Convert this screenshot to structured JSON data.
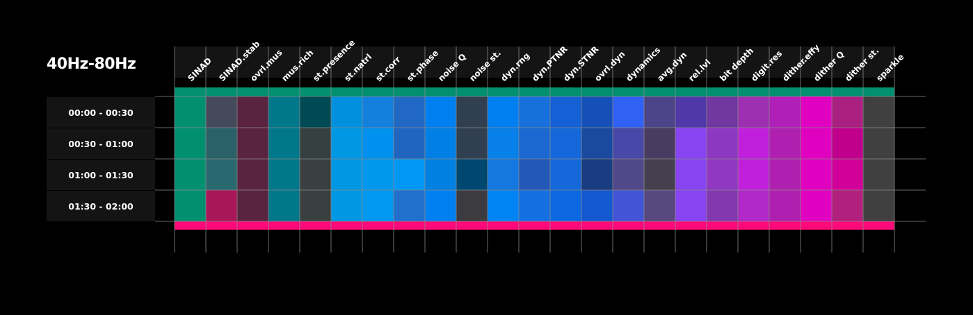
{
  "chart_data": {
    "type": "heatmap",
    "title": "40Hz-80Hz",
    "columns": [
      "SINAD",
      "SINAD.stab",
      "ovrl.mus",
      "mus.rich",
      "st.presence",
      "st.natrl",
      "st.corr",
      "st.phase",
      "noise Q",
      "noise st.",
      "dyn.rng",
      "dyn.PTNR",
      "dyn.STNR",
      "ovrl.dyn",
      "dynamics",
      "avg.dyn",
      "rel.lvl",
      "bit depth",
      "digit.res",
      "dither.effy",
      "dither Q",
      "dither st.",
      "sparkle"
    ],
    "rows": [
      "00:00 - 00:30",
      "00:30 - 01:00",
      "01:00 - 01:30",
      "01:30 - 02:00"
    ],
    "cells": [
      [
        "#009070",
        "#444a5c",
        "#5a2440",
        "#00788a",
        "#004a55",
        "#0090dd",
        "#1480dd",
        "#2068c4",
        "#0080f0",
        "#304050",
        "#0080f0",
        "#1870dd",
        "#1460d4",
        "#1450b8",
        "#3060f4",
        "#4c4488",
        "#5038a8",
        "#7038a0",
        "#9c30b0",
        "#b020b8",
        "#e000c0",
        "#aa2080",
        "#404040"
      ],
      [
        "#009070",
        "#2a6068",
        "#5a2440",
        "#00788a",
        "#364040",
        "#0098e4",
        "#0090ee",
        "#2066c0",
        "#0080e6",
        "#304050",
        "#0880ea",
        "#1a68d0",
        "#1468da",
        "#1a4aa0",
        "#4848a8",
        "#483c60",
        "#8844f0",
        "#8c38c0",
        "#c020dc",
        "#b020b0",
        "#e000c0",
        "#c0008c",
        "#404040"
      ],
      [
        "#009070",
        "#2a6870",
        "#5a2440",
        "#00788a",
        "#3a4040",
        "#0098e4",
        "#0098ee",
        "#0098f4",
        "#0080e0",
        "#004870",
        "#1478e0",
        "#2458b8",
        "#1468da",
        "#1a3c80",
        "#504888",
        "#444050",
        "#8844f0",
        "#9038c0",
        "#c020dc",
        "#b020b0",
        "#e000c0",
        "#d00098",
        "#404040"
      ],
      [
        "#009070",
        "#a81858",
        "#5a2440",
        "#00788a",
        "#3a4040",
        "#0098e4",
        "#0098f0",
        "#2070cc",
        "#0080f0",
        "#3c3c40",
        "#0084f4",
        "#1470e0",
        "#0c68e0",
        "#1458d0",
        "#4454d8",
        "#584880",
        "#8844f0",
        "#8438b0",
        "#b028c8",
        "#b020b0",
        "#e000c0",
        "#b0207c",
        "#404040"
      ]
    ],
    "top_band_color": "#009070",
    "bottom_band_color": "#ff0a78"
  }
}
